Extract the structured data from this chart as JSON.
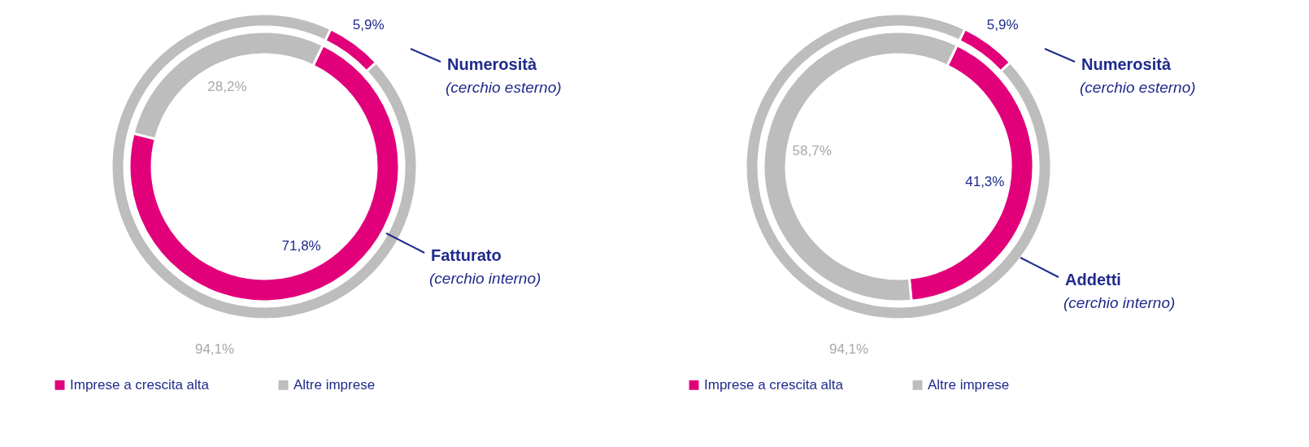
{
  "chart_data": [
    {
      "type": "donut",
      "categories": [
        "Imprese a crescita alta",
        "Altre imprese"
      ],
      "colors": [
        "#e2007a",
        "#bdbdbd"
      ],
      "legend": "bottom left",
      "series": [
        {
          "values": [
            5.9,
            94.1
          ],
          "value_labels": [
            "5,9%",
            "94,1%"
          ]
        },
        {
          "values": [
            71.8,
            28.2
          ],
          "value_labels": [
            "71,8%",
            "28,2%"
          ]
        }
      ],
      "annotations": [
        "Numerosità",
        "(cerchio esterno)",
        "Fatturato",
        "(cerchio interno)"
      ]
    },
    {
      "type": "donut",
      "categories": [
        "Imprese a crescita alta",
        "Altre imprese"
      ],
      "colors": [
        "#e2007a",
        "#bdbdbd"
      ],
      "legend": "bottom left",
      "series": [
        {
          "values": [
            5.9,
            94.1
          ],
          "value_labels": [
            "5,9%",
            "94,1%"
          ]
        },
        {
          "values": [
            41.3,
            58.7
          ],
          "value_labels": [
            "41,3%",
            "58,7%"
          ]
        }
      ],
      "annotations": [
        "Numerosità",
        "(cerchio esterno)",
        "Addetti",
        "(cerchio interno)"
      ]
    }
  ]
}
